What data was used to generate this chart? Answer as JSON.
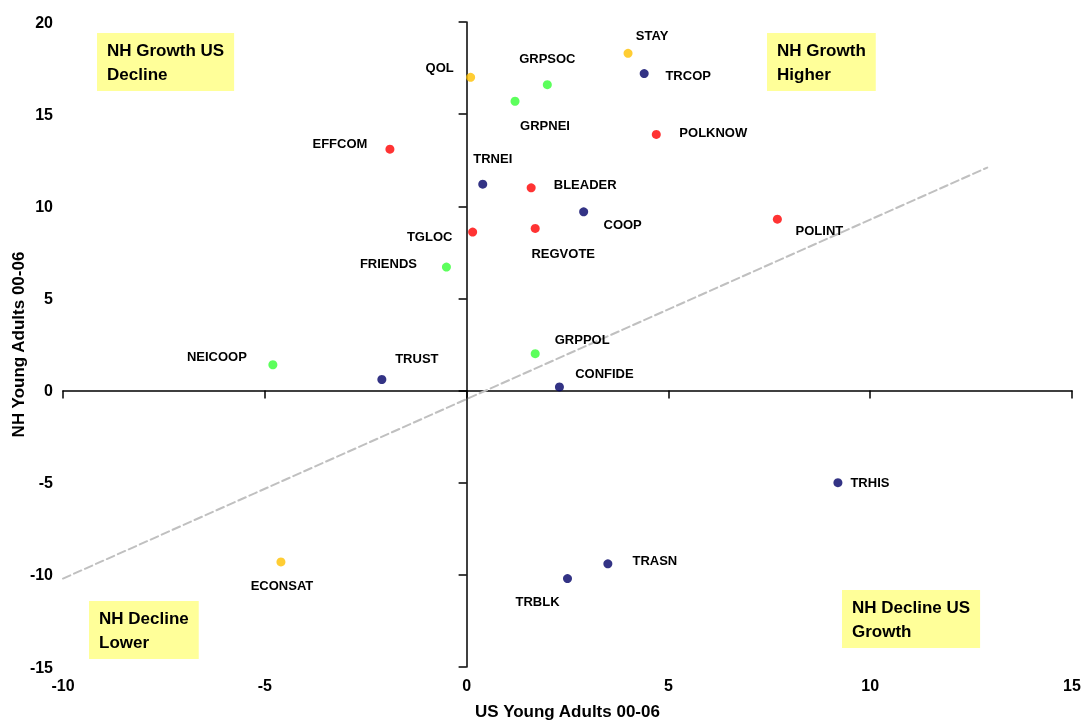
{
  "chart_data": {
    "type": "scatter",
    "xlabel": "US Young Adults 00-06",
    "ylabel": "NH Young Adults 00-06",
    "xlim": [
      -10,
      15
    ],
    "xticks": [
      -10,
      -5,
      0,
      5,
      10,
      15
    ],
    "ylim": [
      -15,
      20
    ],
    "yticks": [
      -15,
      -10,
      -5,
      0,
      5,
      10,
      15,
      20
    ],
    "marker": "circle",
    "series": [
      {
        "color": "#ff0000",
        "x": [
          -1.9,
          4.7,
          1.6,
          7.7,
          0.15,
          1.7
        ],
        "values": [
          13.1,
          13.9,
          11.0,
          9.3,
          8.6,
          8.8
        ]
      },
      {
        "color": "#33ff33",
        "x": [
          2.0,
          1.2,
          -0.5,
          -4.8,
          1.7
        ],
        "values": [
          16.6,
          15.7,
          6.7,
          1.4,
          2.0
        ]
      },
      {
        "color": "#000066",
        "x": [
          4.4,
          0.4,
          2.9,
          -2.1,
          2.3,
          9.2,
          3.5,
          2.5
        ],
        "values": [
          17.2,
          11.2,
          9.7,
          0.6,
          0.2,
          -5.0,
          -9.4,
          -10.2
        ]
      },
      {
        "color": "#ffc000",
        "x": [
          0.1,
          4.0,
          -4.6
        ],
        "values": [
          17.0,
          18.3,
          -9.3
        ]
      },
      {
        "type": "line",
        "color": "#c0c0c0",
        "line_style": "dashed",
        "marker": "none",
        "x": [
          -10,
          12.9
        ],
        "values": [
          -10.2,
          12.1
        ]
      }
    ],
    "annotations": [
      "NH Growth US\nDecline",
      "NH Growth\nHigher",
      "NH Decline\nLower",
      "NH Decline US\nGrowth",
      {
        "text": "EFFCOM",
        "x": -1.9,
        "y": 13.1
      },
      {
        "text": "POLKNOW",
        "x": 4.7,
        "y": 13.9
      },
      {
        "text": "BLEADER",
        "x": 1.6,
        "y": 11.0
      },
      {
        "text": "POLINT",
        "x": 7.7,
        "y": 9.3
      },
      {
        "text": "TGLOC",
        "x": 0.15,
        "y": 8.6
      },
      {
        "text": "REGVOTE",
        "x": 1.7,
        "y": 8.8
      },
      {
        "text": "GRPSOC",
        "x": 2.0,
        "y": 16.6
      },
      {
        "text": "GRPNEI",
        "x": 1.2,
        "y": 15.7
      },
      {
        "text": "FRIENDS",
        "x": -0.5,
        "y": 6.7
      },
      {
        "text": "NEICOOP",
        "x": -4.8,
        "y": 1.4
      },
      {
        "text": "GRPPOL",
        "x": 1.7,
        "y": 2.0
      },
      {
        "text": "TRCOP",
        "x": 4.4,
        "y": 17.2
      },
      {
        "text": "TRNEI",
        "x": 0.4,
        "y": 11.2
      },
      {
        "text": "COOP",
        "x": 2.9,
        "y": 9.7
      },
      {
        "text": "TRUST",
        "x": -2.1,
        "y": 0.6
      },
      {
        "text": "CONFIDE",
        "x": 2.3,
        "y": 0.2
      },
      {
        "text": "TRHIS",
        "x": 9.2,
        "y": -5.0
      },
      {
        "text": "TRASN",
        "x": 3.5,
        "y": -9.4
      },
      {
        "text": "TRBLK",
        "x": 2.5,
        "y": -10.2
      },
      {
        "text": "QOL",
        "x": 0.1,
        "y": 17.0
      },
      {
        "text": "STAY",
        "x": 4.0,
        "y": 18.3
      },
      {
        "text": "ECONSAT",
        "x": -4.6,
        "y": -9.3
      }
    ]
  }
}
